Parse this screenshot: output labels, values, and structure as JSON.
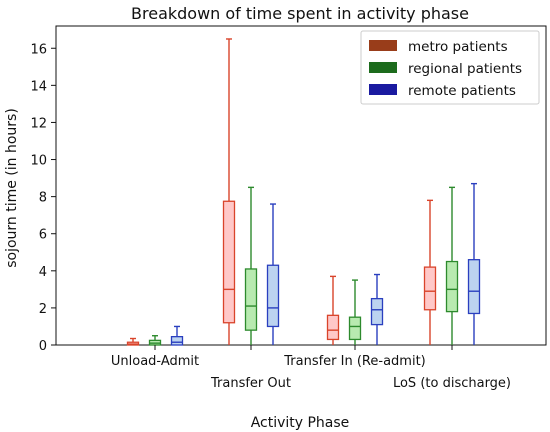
{
  "chart_data": {
    "type": "box",
    "title": "Breakdown of time spent in activity phase",
    "xlabel": "Activity Phase",
    "ylabel": "sojourn time (in hours)",
    "ylim": [
      0,
      17.2
    ],
    "yticks": [
      0,
      2,
      4,
      6,
      8,
      10,
      12,
      14,
      16
    ],
    "categories": [
      "Unload-Admit",
      "Transfer Out",
      "Transfer In (Re-admit)",
      "LoS (to discharge)"
    ],
    "legend_position": "top-right",
    "series": [
      {
        "name": "metro patients",
        "edge_color": "#d9442b",
        "fill_color": "#ffc8c8",
        "legend_color": "#993d1a",
        "boxes": [
          {
            "min": 0,
            "q1": 0.0,
            "median": 0.05,
            "q3": 0.15,
            "max": 0.35
          },
          {
            "min": 0,
            "q1": 1.2,
            "median": 3.0,
            "q3": 7.75,
            "max": 16.5
          },
          {
            "min": 0,
            "q1": 0.3,
            "median": 0.8,
            "q3": 1.6,
            "max": 3.7
          },
          {
            "min": 0,
            "q1": 1.9,
            "median": 2.9,
            "q3": 4.2,
            "max": 7.8
          }
        ]
      },
      {
        "name": "regional patients",
        "edge_color": "#2d8a2d",
        "fill_color": "#b8eab0",
        "legend_color": "#1c6b1c",
        "boxes": [
          {
            "min": 0,
            "q1": 0.0,
            "median": 0.1,
            "q3": 0.25,
            "max": 0.5
          },
          {
            "min": 0,
            "q1": 0.8,
            "median": 2.1,
            "q3": 4.1,
            "max": 8.5
          },
          {
            "min": 0,
            "q1": 0.3,
            "median": 1.0,
            "q3": 1.5,
            "max": 3.5
          },
          {
            "min": 0,
            "q1": 1.8,
            "median": 3.0,
            "q3": 4.5,
            "max": 8.5
          }
        ]
      },
      {
        "name": "remote patients",
        "edge_color": "#2a3fbf",
        "fill_color": "#bcd3f0",
        "legend_color": "#1a1aa0",
        "boxes": [
          {
            "min": 0,
            "q1": 0.0,
            "median": 0.15,
            "q3": 0.45,
            "max": 1.0
          },
          {
            "min": 0,
            "q1": 1.0,
            "median": 2.0,
            "q3": 4.3,
            "max": 7.6
          },
          {
            "min": 0,
            "q1": 1.1,
            "median": 1.9,
            "q3": 2.5,
            "max": 3.8
          },
          {
            "min": 0,
            "q1": 1.7,
            "median": 2.9,
            "q3": 4.6,
            "max": 8.7
          }
        ]
      }
    ]
  }
}
